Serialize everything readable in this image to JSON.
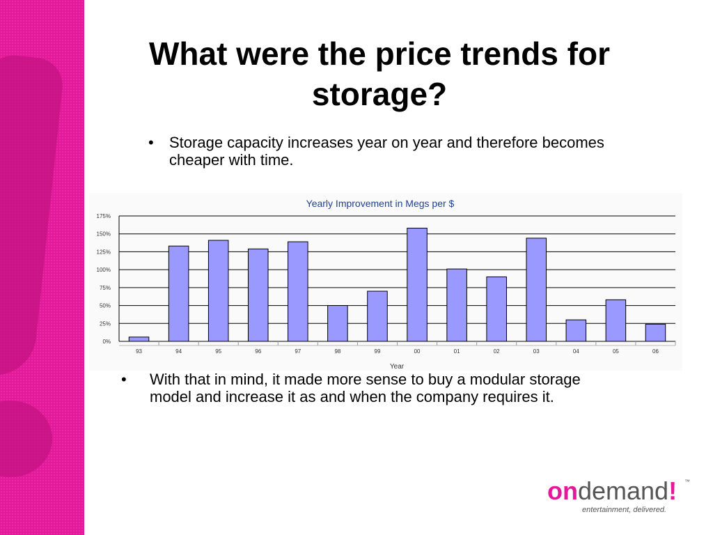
{
  "slide": {
    "title": "What were the price trends for storage?",
    "bullet_symbol": "•",
    "bullets": [
      "Storage capacity increases year on year and therefore becomes cheaper with time.",
      "With that in mind, it made more sense to buy a modular storage model and increase it as and when the company requires it."
    ]
  },
  "logo": {
    "brand_on": "on",
    "brand_demand": "demand",
    "brand_bang": "!",
    "trademark": "™",
    "tagline": "entertainment, delivered."
  },
  "colors": {
    "accent": "#e4189a",
    "bar_fill": "#9999ff",
    "title_color": "#1f3f8f"
  },
  "chart_data": {
    "type": "bar",
    "title": "Yearly  Improvement in Megs per $",
    "xlabel": "Year",
    "ylabel": "",
    "categories": [
      "93",
      "94",
      "95",
      "96",
      "97",
      "98",
      "99",
      "00",
      "01",
      "02",
      "03",
      "04",
      "05",
      "06"
    ],
    "values": [
      6,
      133,
      141,
      129,
      139,
      50,
      70,
      158,
      101,
      90,
      144,
      30,
      58,
      24
    ],
    "ylim": [
      0,
      175
    ],
    "yticks": [
      "0%",
      "25%",
      "50%",
      "75%",
      "100%",
      "125%",
      "150%",
      "175%"
    ],
    "grid": true,
    "legend": "none"
  }
}
